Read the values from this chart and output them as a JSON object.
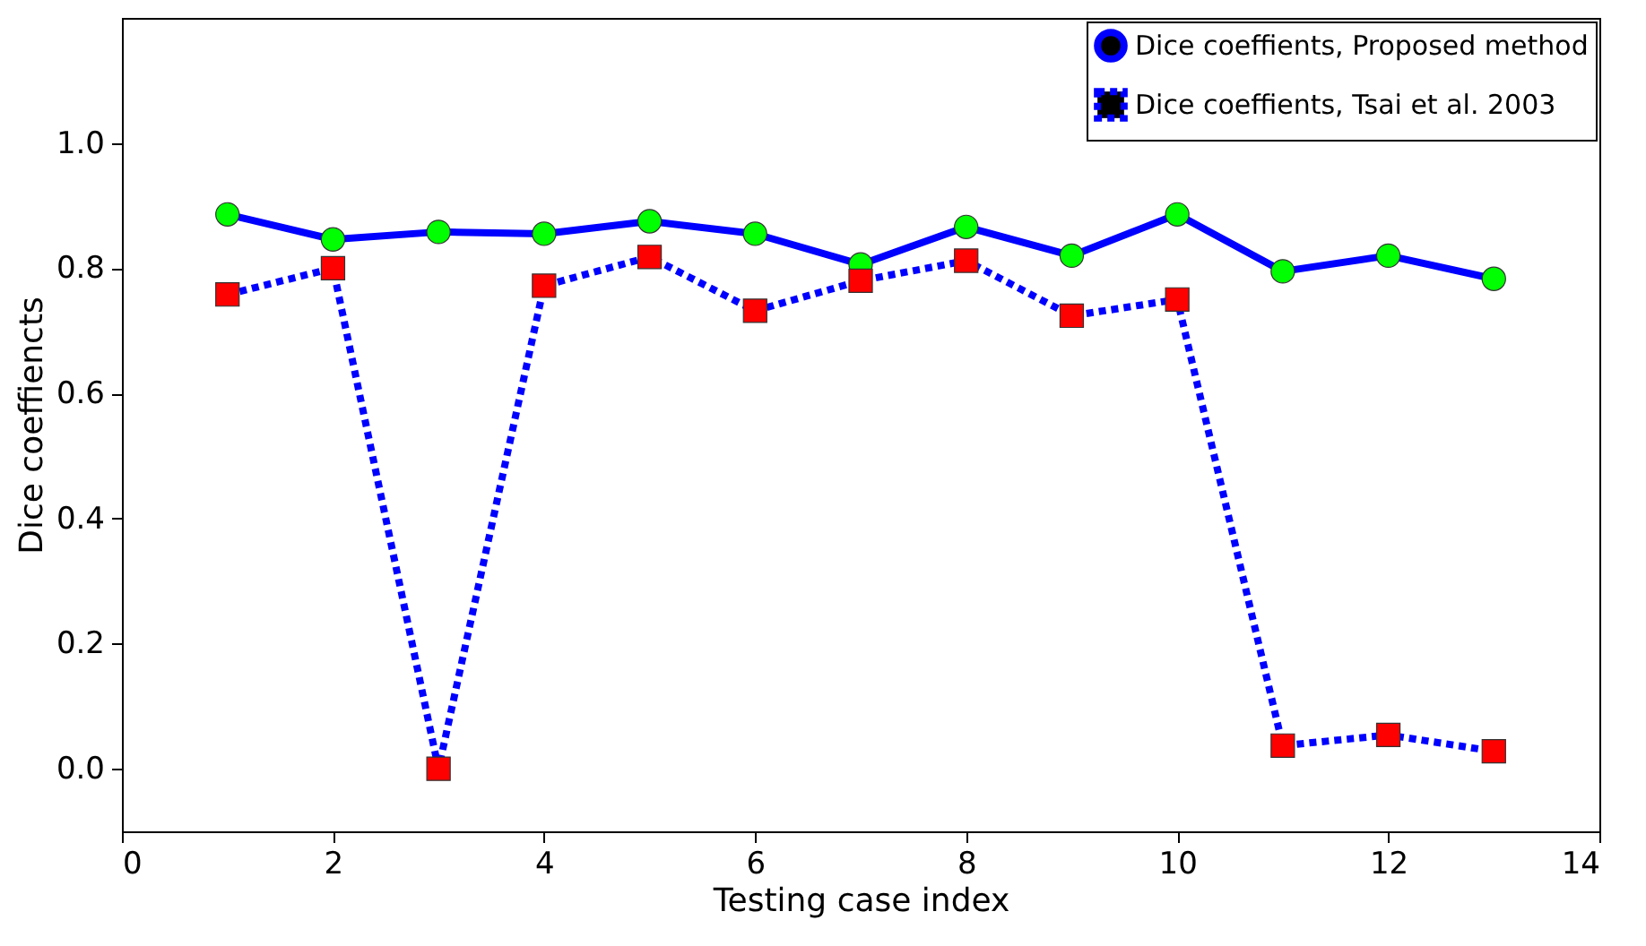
{
  "chart_data": {
    "type": "line",
    "xlabel": "Testing case index",
    "ylabel": "Dice coeffiencts",
    "x": [
      1,
      2,
      3,
      4,
      5,
      6,
      7,
      8,
      9,
      10,
      11,
      12,
      13
    ],
    "series": [
      {
        "name": "Dice coeffients, Proposed method",
        "color": "#0000ff",
        "marker": "circle",
        "colors": [
          "#00ff00",
          "#00ff00",
          "#00ff00",
          "#00ff00",
          "#00ff00",
          "#00ff00",
          "#00ff00",
          "#00ff00",
          "#00ff00",
          "#00ff00",
          "#00ff00",
          "#00ff00",
          "#00ff00"
        ],
        "line_style": "solid",
        "values": [
          0.886,
          0.846,
          0.858,
          0.855,
          0.875,
          0.855,
          0.806,
          0.866,
          0.82,
          0.886,
          0.795,
          0.82,
          0.783
        ]
      },
      {
        "name": "Dice coeffients, Tsai et al. 2003",
        "color": "#0000ff",
        "marker": "square",
        "colors": [
          "#ff0000",
          "#ff0000",
          "#ff0000",
          "#ff0000",
          "#ff0000",
          "#ff0000",
          "#ff0000",
          "#ff0000",
          "#ff0000",
          "#ff0000",
          "#ff0000",
          "#ff0000",
          "#ff0000"
        ],
        "line_style": "dashed",
        "values": [
          0.758,
          0.8,
          0.0,
          0.772,
          0.818,
          0.732,
          0.78,
          0.812,
          0.724,
          0.75,
          0.037,
          0.054,
          0.028
        ]
      }
    ],
    "xlim": [
      0,
      14
    ],
    "xticks": [
      0,
      2,
      4,
      6,
      8,
      10,
      12,
      14
    ],
    "ylim": [
      -0.1,
      1.2
    ],
    "yticks": [
      {
        "value": 0,
        "label": "0.0"
      },
      0.2,
      0.4,
      0.6,
      0.8,
      {
        "value": 1,
        "label": "1.0"
      }
    ],
    "grid": false,
    "legend": "top right"
  }
}
